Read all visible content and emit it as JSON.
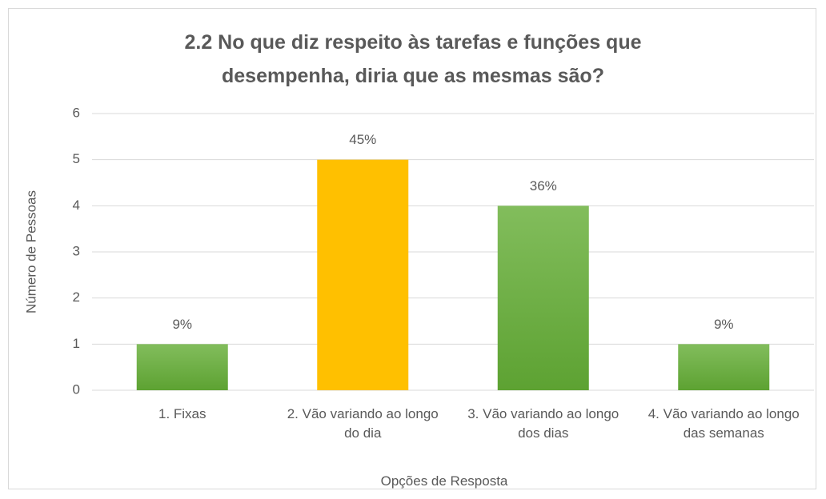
{
  "chart_data": {
    "type": "bar",
    "title": "2.2 No que diz respeito às tarefas e funções que desempenha, diria que as mesmas são?",
    "x_label": "Opções de Resposta",
    "y_label": "Número de Pessoas",
    "categories": [
      "1. Fixas",
      "2. Vão variando ao longo do dia",
      "3. Vão variando ao longo dos dias",
      "4. Vão variando ao longo das semanas"
    ],
    "values": [
      1,
      5,
      4,
      1
    ],
    "percent_labels": [
      "9%",
      "45%",
      "36%",
      "9%"
    ],
    "colors": [
      "#6aab3e",
      "#ffc000",
      "#6aab3e",
      "#6aab3e"
    ],
    "ylim": [
      0,
      6
    ],
    "yticks": [
      0,
      1,
      2,
      3,
      4,
      5,
      6
    ],
    "grid": true
  }
}
